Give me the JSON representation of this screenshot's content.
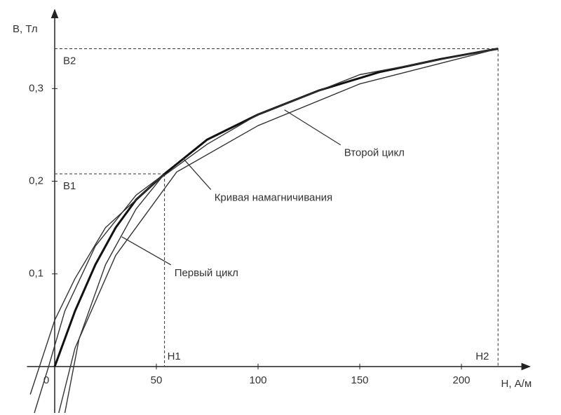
{
  "chart_data": {
    "type": "line",
    "xlabel": "H, А/м",
    "ylabel": "B, Тл",
    "xlim": [
      -15,
      235
    ],
    "ylim": [
      -0.05,
      0.385
    ],
    "xticks": [
      0,
      50,
      100,
      150,
      200
    ],
    "yticks": [
      {
        "value": 0.1,
        "label": "0,1"
      },
      {
        "value": 0.2,
        "label": "0,2"
      },
      {
        "value": 0.3,
        "label": "0,3"
      }
    ],
    "series": [
      {
        "name": "Кривая намагничивания",
        "color": "#111111",
        "width": 3,
        "x": [
          0,
          10,
          20,
          30,
          40,
          54,
          75,
          100,
          130,
          160,
          190,
          218
        ],
        "values": [
          0,
          0.06,
          0.11,
          0.15,
          0.18,
          0.208,
          0.245,
          0.272,
          0.298,
          0.318,
          0.332,
          0.343
        ]
      },
      {
        "name": "Второй цикл",
        "color": "#333333",
        "width": 1.4,
        "x": [
          -12,
          0,
          10,
          25,
          50,
          75,
          100,
          150,
          218,
          150,
          100,
          60,
          30,
          10,
          2
        ],
        "values": [
          -0.03,
          0.05,
          0.095,
          0.15,
          0.2,
          0.24,
          0.272,
          0.315,
          0.343,
          0.305,
          0.26,
          0.21,
          0.12,
          0.02,
          -0.05
        ]
      },
      {
        "name": "Первый цикл",
        "color": "#333333",
        "width": 1.4,
        "x": [
          -10,
          -3,
          5,
          20,
          40,
          54,
          40,
          25,
          12,
          5
        ],
        "values": [
          -0.05,
          0,
          0.06,
          0.13,
          0.185,
          0.208,
          0.17,
          0.11,
          0.03,
          -0.05
        ]
      }
    ],
    "guides": [
      {
        "x": 54,
        "y": 0.208,
        "xlabel": "H1",
        "ylabel": "B1"
      },
      {
        "x": 218,
        "y": 0.343,
        "xlabel": "H2",
        "ylabel": "B2"
      }
    ],
    "annotations": [
      {
        "text": "Второй цикл",
        "x": 113,
        "y": 0.277
      },
      {
        "text": "Кривая намагничивания",
        "x": 63,
        "y": 0.225
      },
      {
        "text": "Первый цикл",
        "x": 33,
        "y": 0.14
      }
    ]
  }
}
